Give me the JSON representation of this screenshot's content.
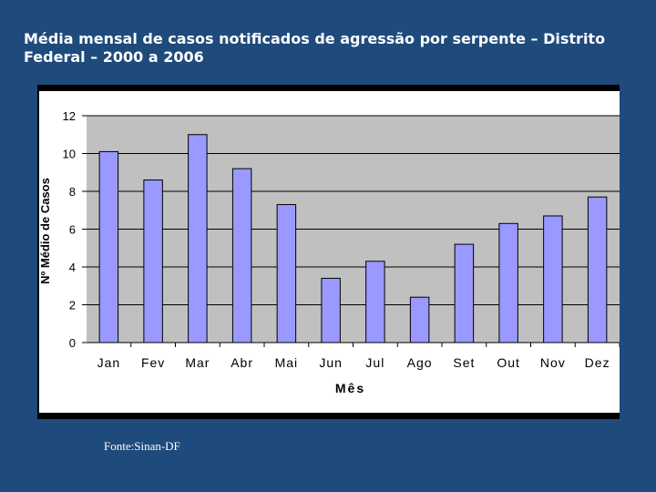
{
  "slide": {
    "title": "Média mensal de casos notificados de agressão por serpente – Distrito Federal – 2000 a 2006",
    "source": "Fonte:Sinan-DF"
  },
  "colors": {
    "background": "#1f4a7c",
    "plot_area": "#c0c0c0",
    "bar_fill": "#9999ff",
    "bar_stroke": "#000000"
  },
  "chart_data": {
    "type": "bar",
    "categories": [
      "Jan",
      "Fev",
      "Mar",
      "Abr",
      "Mai",
      "Jun",
      "Jul",
      "Ago",
      "Set",
      "Out",
      "Nov",
      "Dez"
    ],
    "series": [
      {
        "values": [
          10.1,
          8.6,
          11.0,
          9.2,
          7.3,
          3.4,
          4.3,
          2.4,
          5.2,
          6.3,
          6.7,
          7.7
        ]
      }
    ],
    "xlabel": "Mês",
    "ylabel": "Nº Médio de Casos",
    "ylim": [
      0,
      12
    ],
    "yticks": [
      0,
      2,
      4,
      6,
      8,
      10,
      12
    ],
    "grid": true,
    "legend": false
  }
}
